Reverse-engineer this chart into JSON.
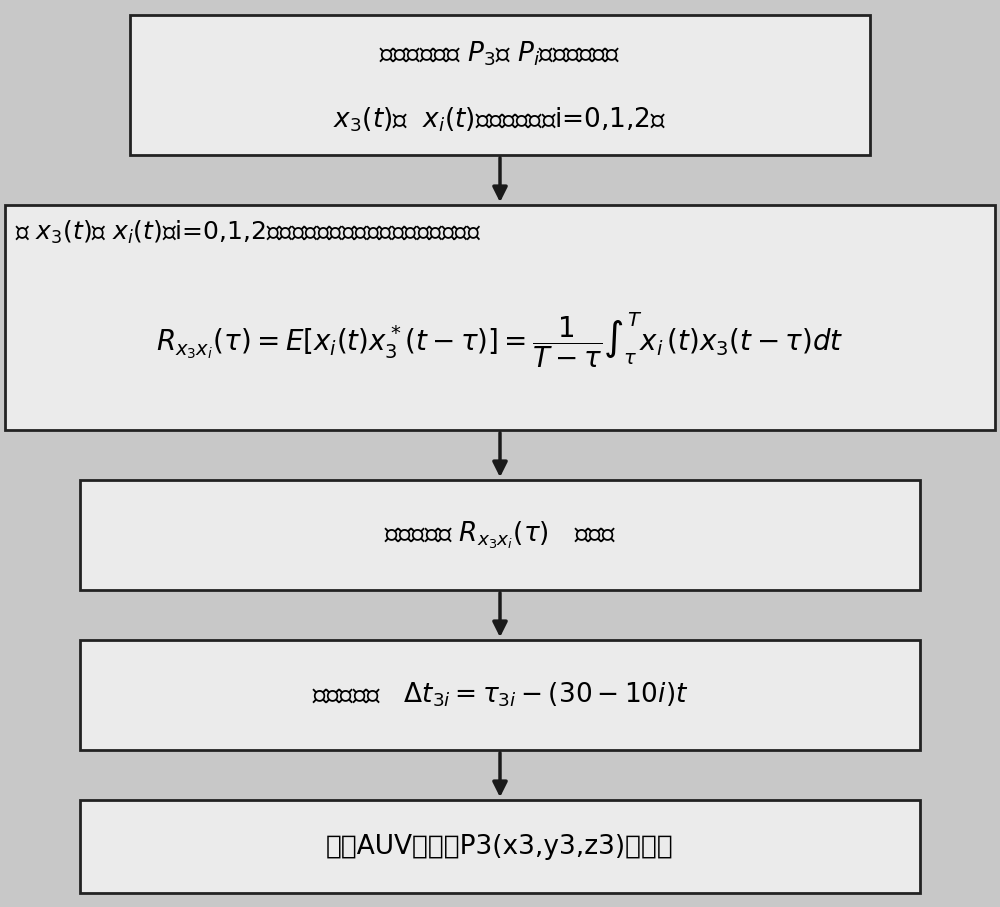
{
  "bg_color": "#c8c8c8",
  "box_fill": "#ebebeb",
  "box_edge": "#222222",
  "arrow_color": "#1a1a1a",
  "text_color": "#000000",
  "fig_width": 10.0,
  "fig_height": 9.07,
  "dpi": 100
}
